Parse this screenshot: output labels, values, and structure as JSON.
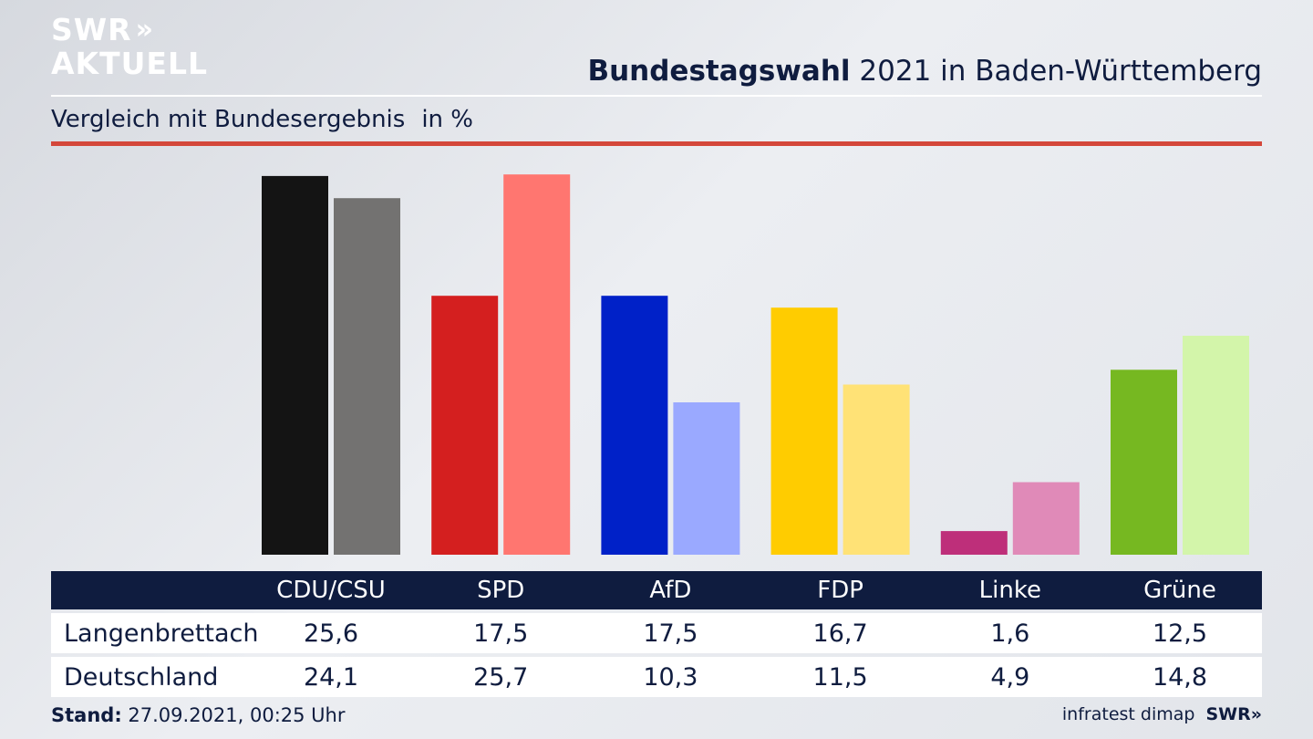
{
  "logo": {
    "line1": "SWR",
    "chevrons": "»",
    "line2": "AKTUELL"
  },
  "header": {
    "title_bold": "Bundestagswahl",
    "title_rest": " 2021 in Baden-Württemberg"
  },
  "subheader": {
    "text": "Vergleich mit Bundesergebnis",
    "unit": "in %"
  },
  "chart_data": {
    "type": "bar",
    "categories": [
      "CDU/CSU",
      "SPD",
      "AfD",
      "FDP",
      "Linke",
      "Grüne"
    ],
    "series": [
      {
        "name": "Langenbrettach",
        "values": [
          25.6,
          17.5,
          17.5,
          16.7,
          1.6,
          12.5
        ],
        "colors": [
          "#141414",
          "#d41f1f",
          "#0021c8",
          "#ffcc00",
          "#be2f7a",
          "#76b821"
        ]
      },
      {
        "name": "Deutschland",
        "values": [
          24.1,
          25.7,
          10.3,
          11.5,
          4.9,
          14.8
        ],
        "colors": [
          "#737271",
          "#ff7670",
          "#9aa9ff",
          "#ffe276",
          "#e08ab8",
          "#d3f5aa"
        ]
      }
    ],
    "ylim": [
      0,
      25.9
    ]
  },
  "footer": {
    "stand_label": "Stand:",
    "stand_value": " 27.09.2021, 00:25 Uhr",
    "source": "infratest dimap",
    "brand": "SWR»"
  }
}
